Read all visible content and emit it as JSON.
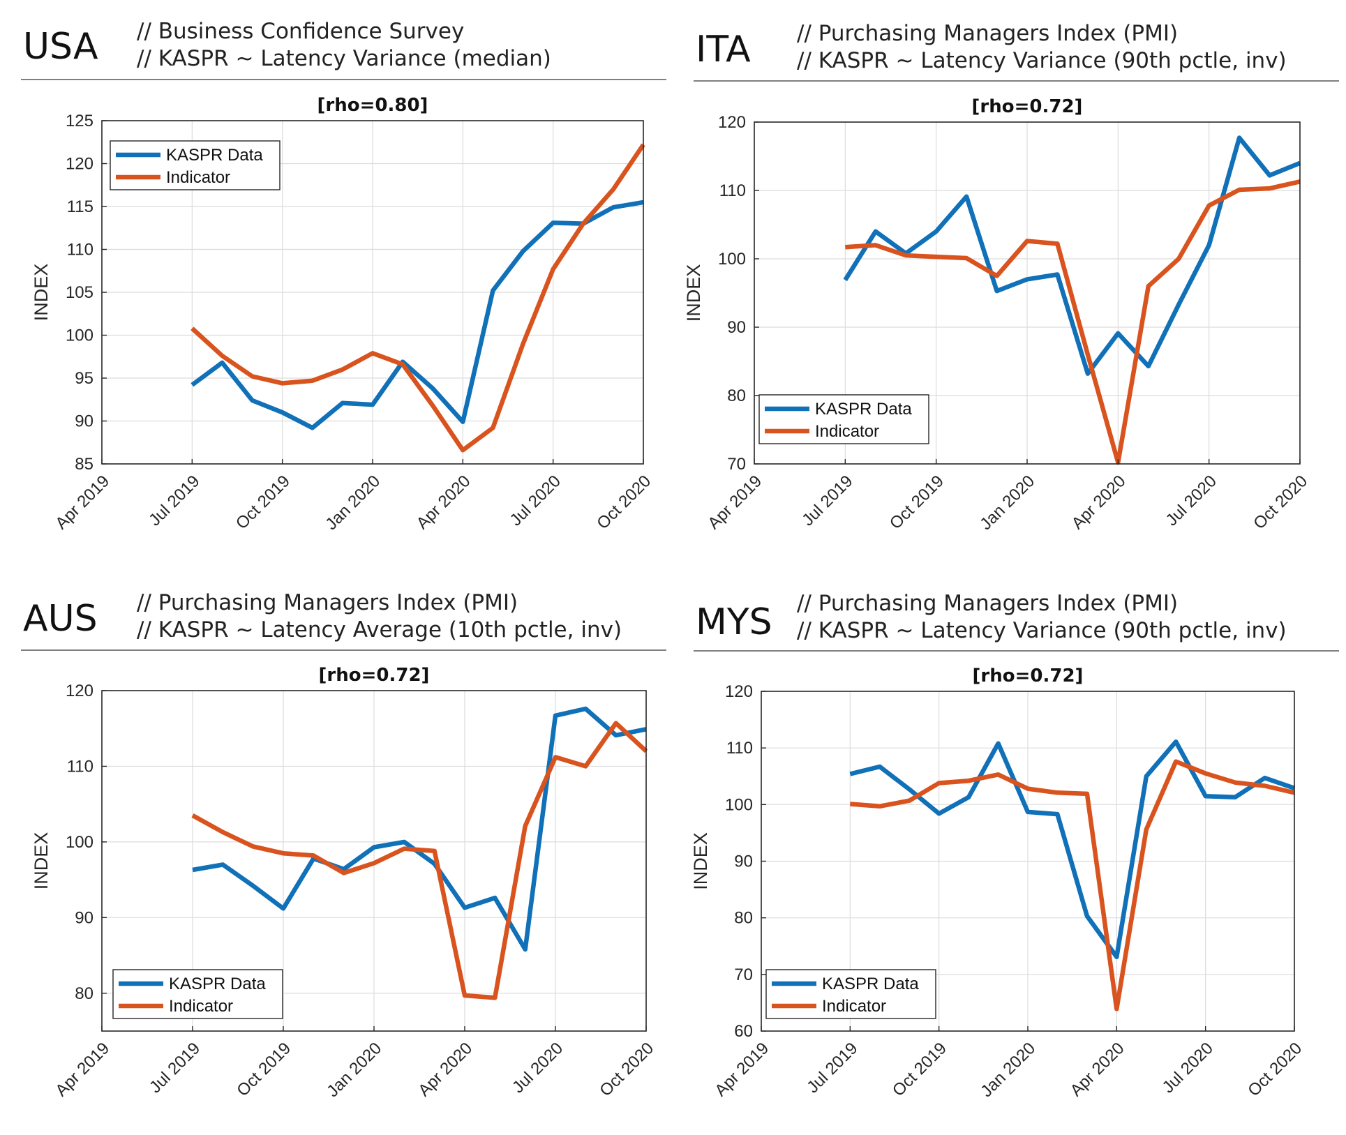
{
  "colors": {
    "kaspr": "#1070b8",
    "indicator": "#d9531e",
    "grid": "#dcdcdc"
  },
  "chart_data": [
    {
      "type": "line",
      "country": "USA",
      "subtitle_1": "// Business Confidence Survey",
      "subtitle_2": "// KASPR ~ Latency Variance (median)",
      "title": "[rho=0.80]",
      "ylabel": "INDEX",
      "xlabel": "",
      "xlim": [
        "2019-04",
        "2020-10"
      ],
      "xticks": [
        "Apr 2019",
        "Jul 2019",
        "Oct 2019",
        "Jan 2020",
        "Apr 2020",
        "Jul 2020",
        "Oct 2020"
      ],
      "ylim": [
        85,
        125
      ],
      "yticks": [
        85,
        90,
        95,
        100,
        105,
        110,
        115,
        120,
        125
      ],
      "grid": true,
      "legend_position": "top-left",
      "series": [
        {
          "name": "KASPR Data",
          "color": "kaspr",
          "x": [
            "2019-07",
            "2019-08",
            "2019-09",
            "2019-10",
            "2019-11",
            "2019-12",
            "2020-01",
            "2020-02",
            "2020-03",
            "2020-04",
            "2020-05",
            "2020-06",
            "2020-07",
            "2020-08",
            "2020-09",
            "2020-10"
          ],
          "y": [
            94.2,
            96.8,
            92.4,
            91.0,
            89.2,
            92.1,
            91.9,
            96.9,
            93.8,
            89.9,
            105.2,
            109.8,
            113.1,
            113.0,
            114.9,
            115.5
          ]
        },
        {
          "name": "Indicator",
          "color": "indicator",
          "x": [
            "2019-07",
            "2019-08",
            "2019-09",
            "2019-10",
            "2019-11",
            "2019-12",
            "2020-01",
            "2020-02",
            "2020-03",
            "2020-04",
            "2020-05",
            "2020-06",
            "2020-07",
            "2020-08",
            "2020-09",
            "2020-10"
          ],
          "y": [
            100.8,
            97.6,
            95.2,
            94.4,
            94.7,
            96.0,
            97.9,
            96.6,
            91.8,
            86.6,
            89.2,
            99.0,
            107.7,
            113.0,
            117.0,
            122.2
          ]
        }
      ]
    },
    {
      "type": "line",
      "country": "ITA",
      "subtitle_1": "// Purchasing Managers Index (PMI)",
      "subtitle_2": "// KASPR ~ Latency Variance (90th pctle, inv)",
      "title": "[rho=0.72]",
      "ylabel": "INDEX",
      "xlabel": "",
      "xlim": [
        "2019-04",
        "2020-10"
      ],
      "xticks": [
        "Apr 2019",
        "Jul 2019",
        "Oct 2019",
        "Jan 2020",
        "Apr 2020",
        "Jul 2020",
        "Oct 2020"
      ],
      "ylim": [
        70,
        120
      ],
      "yticks": [
        70,
        80,
        90,
        100,
        110,
        120
      ],
      "grid": true,
      "legend_position": "bottom-left",
      "series": [
        {
          "name": "KASPR Data",
          "color": "kaspr",
          "x": [
            "2019-07",
            "2019-08",
            "2019-09",
            "2019-10",
            "2019-11",
            "2019-12",
            "2020-01",
            "2020-02",
            "2020-03",
            "2020-04",
            "2020-05",
            "2020-06",
            "2020-07",
            "2020-08",
            "2020-09",
            "2020-10"
          ],
          "y": [
            96.9,
            104.0,
            100.8,
            104.0,
            109.1,
            95.3,
            97.0,
            97.7,
            83.2,
            89.1,
            84.3,
            93.3,
            102.0,
            117.7,
            112.2,
            114.0
          ]
        },
        {
          "name": "Indicator",
          "color": "indicator",
          "x": [
            "2019-07",
            "2019-08",
            "2019-09",
            "2019-10",
            "2019-11",
            "2019-12",
            "2020-01",
            "2020-02",
            "2020-03",
            "2020-04",
            "2020-05",
            "2020-06",
            "2020-07",
            "2020-08",
            "2020-09",
            "2020-10"
          ],
          "y": [
            101.7,
            102.0,
            100.5,
            100.3,
            100.1,
            97.5,
            102.6,
            102.2,
            86.0,
            70.2,
            96.0,
            100.0,
            107.8,
            110.1,
            110.3,
            111.3
          ]
        }
      ]
    },
    {
      "type": "line",
      "country": "AUS",
      "subtitle_1": "// Purchasing Managers Index (PMI)",
      "subtitle_2": "// KASPR ~ Latency Average (10th pctle, inv)",
      "title": "[rho=0.72]",
      "ylabel": "INDEX",
      "xlabel": "",
      "xlim": [
        "2019-04",
        "2020-10"
      ],
      "xticks": [
        "Apr 2019",
        "Jul 2019",
        "Oct 2019",
        "Jan 2020",
        "Apr 2020",
        "Jul 2020",
        "Oct 2020"
      ],
      "ylim": [
        75,
        120
      ],
      "yticks": [
        80,
        90,
        100,
        110,
        120
      ],
      "grid": true,
      "legend_position": "bottom-left",
      "series": [
        {
          "name": "KASPR Data",
          "color": "kaspr",
          "x": [
            "2019-07",
            "2019-08",
            "2019-09",
            "2019-10",
            "2019-11",
            "2019-12",
            "2020-01",
            "2020-02",
            "2020-03",
            "2020-04",
            "2020-05",
            "2020-06",
            "2020-07",
            "2020-08",
            "2020-09",
            "2020-10"
          ],
          "y": [
            96.3,
            97.0,
            94.2,
            91.2,
            97.8,
            96.4,
            99.3,
            100.0,
            97.1,
            91.3,
            92.6,
            85.8,
            116.7,
            117.6,
            114.1,
            114.9
          ]
        },
        {
          "name": "Indicator",
          "color": "indicator",
          "x": [
            "2019-07",
            "2019-08",
            "2019-09",
            "2019-10",
            "2019-11",
            "2019-12",
            "2020-01",
            "2020-02",
            "2020-03",
            "2020-04",
            "2020-05",
            "2020-06",
            "2020-07",
            "2020-08",
            "2020-09",
            "2020-10"
          ],
          "y": [
            103.5,
            101.3,
            99.4,
            98.5,
            98.2,
            95.9,
            97.2,
            99.1,
            98.8,
            79.7,
            79.4,
            102.1,
            111.2,
            110.0,
            115.7,
            112.0
          ]
        }
      ]
    },
    {
      "type": "line",
      "country": "MYS",
      "subtitle_1": "// Purchasing Managers Index (PMI)",
      "subtitle_2": "// KASPR ~ Latency Variance (90th pctle, inv)",
      "title": "[rho=0.72]",
      "ylabel": "INDEX",
      "xlabel": "",
      "xlim": [
        "2019-04",
        "2020-10"
      ],
      "xticks": [
        "Apr 2019",
        "Jul 2019",
        "Oct 2019",
        "Jan 2020",
        "Apr 2020",
        "Jul 2020",
        "Oct 2020"
      ],
      "ylim": [
        60,
        120
      ],
      "yticks": [
        60,
        70,
        80,
        90,
        100,
        110,
        120
      ],
      "grid": true,
      "legend_position": "bottom-left",
      "series": [
        {
          "name": "KASPR Data",
          "color": "kaspr",
          "x": [
            "2019-07",
            "2019-08",
            "2019-09",
            "2019-10",
            "2019-11",
            "2019-12",
            "2020-01",
            "2020-02",
            "2020-03",
            "2020-04",
            "2020-05",
            "2020-06",
            "2020-07",
            "2020-08",
            "2020-09",
            "2020-10"
          ],
          "y": [
            105.4,
            106.7,
            102.7,
            98.4,
            101.3,
            110.8,
            98.7,
            98.3,
            80.3,
            73.1,
            105.0,
            111.1,
            101.5,
            101.3,
            104.7,
            102.9
          ]
        },
        {
          "name": "Indicator",
          "color": "indicator",
          "x": [
            "2019-07",
            "2019-08",
            "2019-09",
            "2019-10",
            "2019-11",
            "2019-12",
            "2020-01",
            "2020-02",
            "2020-03",
            "2020-04",
            "2020-05",
            "2020-06",
            "2020-07",
            "2020-08",
            "2020-09",
            "2020-10"
          ],
          "y": [
            100.1,
            99.7,
            100.7,
            103.8,
            104.2,
            105.3,
            102.8,
            102.1,
            101.9,
            63.9,
            95.6,
            107.6,
            105.5,
            103.9,
            103.3,
            102.1
          ]
        }
      ]
    }
  ]
}
